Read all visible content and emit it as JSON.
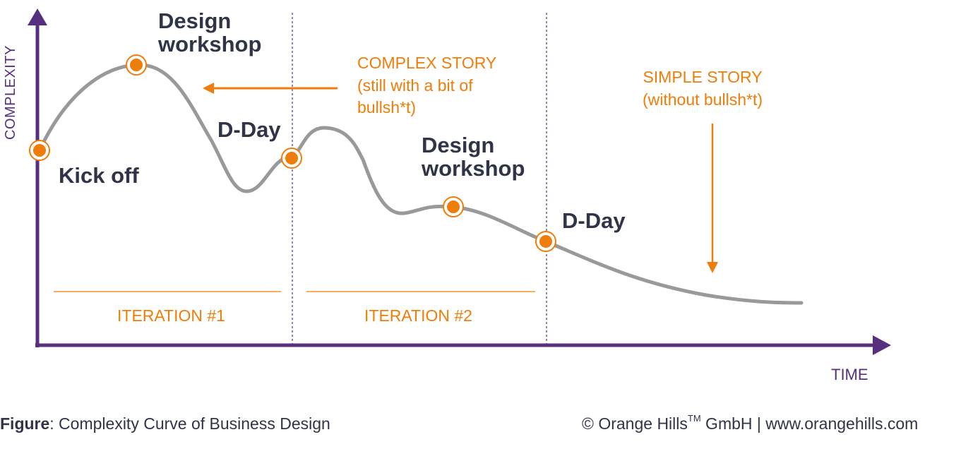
{
  "colors": {
    "axis": "#56307f",
    "curve": "#999999",
    "accent": "#ef7d0a",
    "text": "#2f3547",
    "divider": "#56307f"
  },
  "axes": {
    "y_label": "COMPLEXITY",
    "x_label": "TIME"
  },
  "milestones": {
    "kickoff": "Kick off",
    "design_workshop_1": "Design\nworkshop",
    "dday_1": "D-Day",
    "design_workshop_2": "Design\nworkshop",
    "dday_2": "D-Day"
  },
  "notes": {
    "complex_story": "COMPLEX STORY\n(still with a bit of\nbullsh*t)",
    "simple_story": "SIMPLE STORY\n(without bullsh*t)"
  },
  "iterations": [
    "ITERATION #1",
    "ITERATION #2"
  ],
  "caption": {
    "figure_label": "Figure",
    "figure_text": ": Complexity Curve of Business Design",
    "copyright_prefix": "© Orange Hills",
    "trademark": "TM",
    "copyright_suffix": " GmbH | www.orangehills.com"
  }
}
